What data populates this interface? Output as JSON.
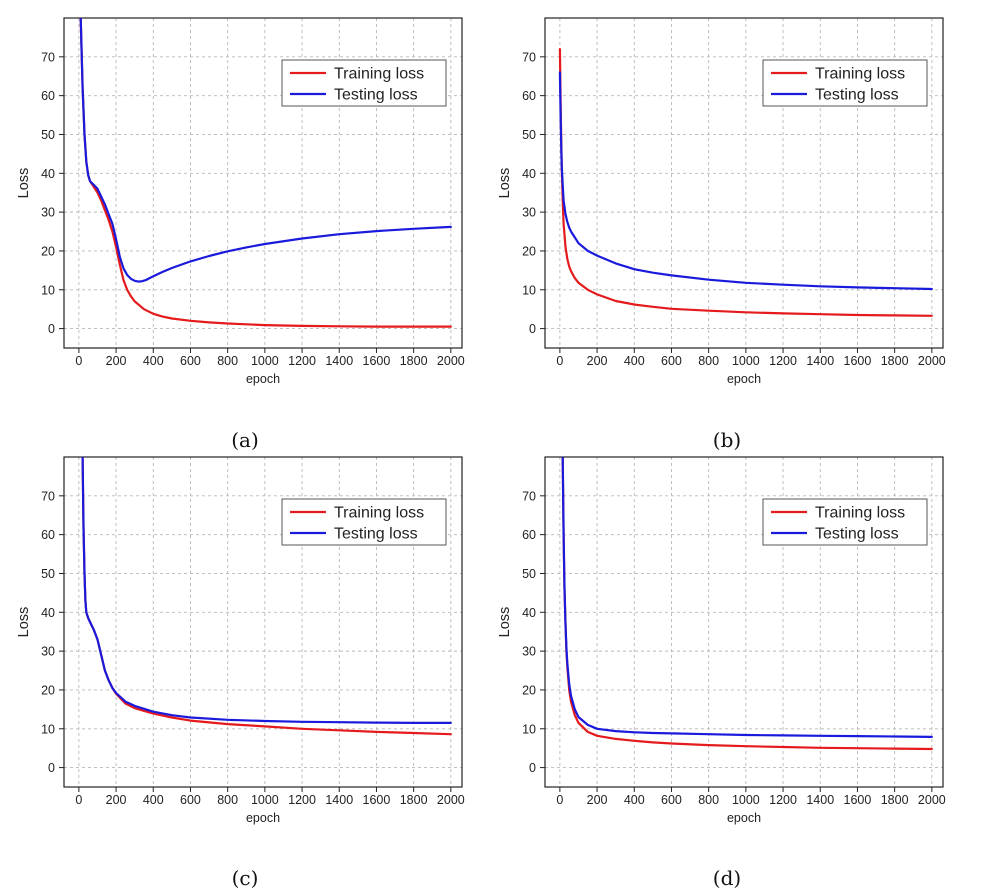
{
  "figure": {
    "panels": [
      {
        "caption": "(a)"
      },
      {
        "caption": "(b)"
      },
      {
        "caption": "(c)"
      },
      {
        "caption": "(d)"
      }
    ]
  },
  "colors": {
    "training": "#e41a1c",
    "testing": "#1a1adc",
    "grid": "#b8b8b8",
    "axis": "#222222"
  },
  "chart_data": [
    {
      "type": "line",
      "caption": "(a)",
      "xlabel": "epoch",
      "ylabel": "Loss",
      "xlim": [
        -80,
        2060
      ],
      "ylim": [
        -5,
        80
      ],
      "xticks": [
        0,
        200,
        400,
        600,
        800,
        1000,
        1200,
        1400,
        1600,
        1800,
        2000
      ],
      "yticks": [
        0,
        10,
        20,
        30,
        40,
        50,
        60,
        70
      ],
      "grid": true,
      "legend_position": "top-right",
      "series": [
        {
          "name": "Training loss",
          "color": "#e41a1c",
          "x": [
            10,
            20,
            30,
            40,
            50,
            60,
            80,
            100,
            120,
            140,
            160,
            180,
            200,
            220,
            240,
            260,
            280,
            300,
            350,
            400,
            450,
            500,
            600,
            700,
            800,
            900,
            1000,
            1200,
            1400,
            1600,
            1800,
            2000
          ],
          "y": [
            80,
            62,
            50,
            43,
            39.5,
            38,
            36.5,
            35,
            33,
            30.5,
            28,
            25,
            21,
            16.5,
            12.5,
            10,
            8.3,
            7,
            5,
            3.8,
            3.1,
            2.6,
            2.0,
            1.6,
            1.3,
            1.1,
            0.9,
            0.7,
            0.6,
            0.5,
            0.5,
            0.5
          ]
        },
        {
          "name": "Testing loss",
          "color": "#1a1adc",
          "x": [
            10,
            20,
            30,
            40,
            50,
            60,
            80,
            100,
            120,
            140,
            160,
            180,
            200,
            220,
            240,
            260,
            280,
            300,
            320,
            340,
            360,
            380,
            400,
            450,
            500,
            600,
            700,
            800,
            900,
            1000,
            1200,
            1400,
            1600,
            1800,
            2000
          ],
          "y": [
            80,
            62,
            50,
            43,
            39.5,
            38,
            37,
            36,
            34,
            32,
            29.5,
            27,
            23,
            18.5,
            15.5,
            13.8,
            12.8,
            12.3,
            12.1,
            12.2,
            12.5,
            13,
            13.5,
            14.6,
            15.6,
            17.3,
            18.7,
            19.9,
            20.9,
            21.8,
            23.2,
            24.3,
            25.1,
            25.7,
            26.2
          ]
        }
      ]
    },
    {
      "type": "line",
      "caption": "(b)",
      "xlabel": "epoch",
      "ylabel": "Loss",
      "xlim": [
        -80,
        2060
      ],
      "ylim": [
        -5,
        80
      ],
      "xticks": [
        0,
        200,
        400,
        600,
        800,
        1000,
        1200,
        1400,
        1600,
        1800,
        2000
      ],
      "yticks": [
        0,
        10,
        20,
        30,
        40,
        50,
        60,
        70
      ],
      "grid": true,
      "legend_position": "top-right",
      "series": [
        {
          "name": "Training loss",
          "color": "#e41a1c",
          "x": [
            0,
            5,
            10,
            15,
            20,
            30,
            40,
            50,
            60,
            80,
            100,
            150,
            200,
            300,
            400,
            500,
            600,
            800,
            1000,
            1200,
            1400,
            1600,
            1800,
            2000
          ],
          "y": [
            72,
            55,
            42,
            33,
            27,
            21,
            18,
            16,
            14.8,
            13,
            11.8,
            10,
            8.8,
            7.1,
            6.2,
            5.6,
            5.1,
            4.6,
            4.2,
            3.9,
            3.7,
            3.5,
            3.4,
            3.3
          ]
        },
        {
          "name": "Testing loss",
          "color": "#1a1adc",
          "x": [
            0,
            5,
            10,
            15,
            20,
            30,
            40,
            50,
            60,
            80,
            100,
            150,
            200,
            300,
            400,
            500,
            600,
            800,
            1000,
            1200,
            1400,
            1600,
            1800,
            2000
          ],
          "y": [
            66,
            52,
            42,
            37,
            33,
            29.5,
            27.5,
            26,
            25,
            23.5,
            22,
            20,
            18.8,
            16.8,
            15.3,
            14.4,
            13.7,
            12.6,
            11.8,
            11.3,
            10.9,
            10.6,
            10.4,
            10.2
          ]
        }
      ]
    },
    {
      "type": "line",
      "caption": "(c)",
      "xlabel": "epoch",
      "ylabel": "Loss",
      "xlim": [
        -80,
        2060
      ],
      "ylim": [
        -5,
        80
      ],
      "xticks": [
        0,
        200,
        400,
        600,
        800,
        1000,
        1200,
        1400,
        1600,
        1800,
        2000
      ],
      "yticks": [
        0,
        10,
        20,
        30,
        40,
        50,
        60,
        70
      ],
      "grid": true,
      "legend_position": "top-right",
      "series": [
        {
          "name": "Training loss",
          "color": "#e41a1c",
          "x": [
            20,
            25,
            30,
            35,
            40,
            50,
            60,
            80,
            100,
            120,
            140,
            160,
            180,
            200,
            250,
            300,
            400,
            500,
            600,
            800,
            1000,
            1200,
            1400,
            1600,
            1800,
            2000
          ],
          "y": [
            80,
            62,
            50,
            43,
            40,
            38.5,
            37.5,
            35.5,
            33,
            29,
            25,
            22.5,
            20.5,
            19,
            16.5,
            15.3,
            13.9,
            12.9,
            12.1,
            11.2,
            10.6,
            10,
            9.6,
            9.2,
            8.9,
            8.6
          ]
        },
        {
          "name": "Testing loss",
          "color": "#1a1adc",
          "x": [
            20,
            25,
            30,
            35,
            40,
            50,
            60,
            80,
            100,
            120,
            140,
            160,
            180,
            200,
            250,
            300,
            400,
            500,
            600,
            800,
            1000,
            1200,
            1400,
            1600,
            1800,
            2000
          ],
          "y": [
            80,
            62,
            50,
            43,
            40,
            38.5,
            37.5,
            35.5,
            33,
            29,
            25,
            22.5,
            20.5,
            19.2,
            17,
            15.9,
            14.4,
            13.5,
            12.9,
            12.3,
            12,
            11.8,
            11.7,
            11.6,
            11.5,
            11.5
          ]
        }
      ]
    },
    {
      "type": "line",
      "caption": "(d)",
      "xlabel": "epoch",
      "ylabel": "Loss",
      "xlim": [
        -80,
        2060
      ],
      "ylim": [
        -5,
        80
      ],
      "xticks": [
        0,
        200,
        400,
        600,
        800,
        1000,
        1200,
        1400,
        1600,
        1800,
        2000
      ],
      "yticks": [
        0,
        10,
        20,
        30,
        40,
        50,
        60,
        70
      ],
      "grid": true,
      "legend_position": "top-right",
      "series": [
        {
          "name": "Training loss",
          "color": "#e41a1c",
          "x": [
            15,
            20,
            25,
            30,
            35,
            40,
            50,
            60,
            80,
            100,
            150,
            200,
            300,
            400,
            500,
            600,
            800,
            1000,
            1200,
            1400,
            1600,
            1800,
            2000
          ],
          "y": [
            80,
            60,
            46,
            37,
            30,
            26,
            20,
            17,
            13.5,
            11.5,
            9.2,
            8.2,
            7.4,
            6.9,
            6.5,
            6.2,
            5.8,
            5.5,
            5.3,
            5.1,
            5,
            4.9,
            4.8
          ]
        },
        {
          "name": "Testing loss",
          "color": "#1a1adc",
          "x": [
            15,
            20,
            25,
            30,
            35,
            40,
            50,
            60,
            80,
            100,
            150,
            200,
            300,
            400,
            500,
            600,
            800,
            1000,
            1200,
            1400,
            1600,
            1800,
            2000
          ],
          "y": [
            80,
            60,
            46,
            37,
            31,
            27,
            21.5,
            18.5,
            15,
            13,
            11,
            10,
            9.4,
            9.1,
            8.9,
            8.8,
            8.6,
            8.4,
            8.3,
            8.2,
            8.1,
            8,
            7.9
          ]
        }
      ]
    }
  ]
}
